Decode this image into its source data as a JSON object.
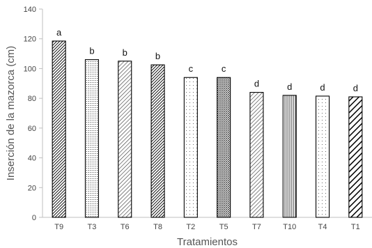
{
  "chart_data": {
    "type": "bar",
    "xlabel": "Tratamientos",
    "ylabel": "Inserción de la mazorca (cm)",
    "ylim": [
      0,
      140
    ],
    "yticks": [
      0,
      20,
      40,
      60,
      80,
      100,
      120,
      140
    ],
    "grid": false,
    "categories": [
      "T9",
      "T3",
      "T6",
      "T8",
      "T2",
      "T5",
      "T7",
      "T10",
      "T4",
      "T1"
    ],
    "values": [
      118.5,
      106,
      105,
      102.5,
      94,
      94,
      84,
      82,
      81.5,
      81
    ],
    "letters": [
      "a",
      "b",
      "b",
      "b",
      "c",
      "c",
      "d",
      "d",
      "d",
      "d"
    ],
    "patterns": [
      "dense-diagonal",
      "fine-dots",
      "diagonal",
      "dense-diagonal",
      "sparse-dots",
      "crosshatch",
      "diagonal",
      "vertical-lines",
      "sparse-dots",
      "wide-diagonal"
    ]
  }
}
